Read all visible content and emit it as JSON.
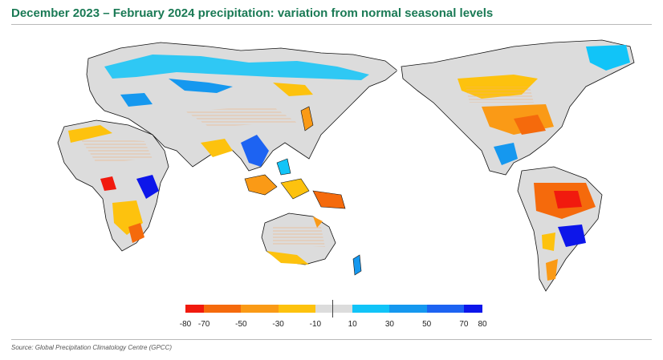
{
  "title": "December 2023 – February 2024 precipitation: variation from normal seasonal levels",
  "source": "Source: Global Precipitation Climatology Centre (GPCC)",
  "legend": {
    "swatches": [
      {
        "from": -80,
        "to": -70,
        "color": "#f11a0e"
      },
      {
        "from": -70,
        "to": -50,
        "color": "#f56a0c"
      },
      {
        "from": -50,
        "to": -30,
        "color": "#fa9a16"
      },
      {
        "from": -30,
        "to": -10,
        "color": "#fdc20e"
      },
      {
        "from": -10,
        "to": 10,
        "color": "#dcdcdc"
      },
      {
        "from": 10,
        "to": 30,
        "color": "#11c4f8"
      },
      {
        "from": 30,
        "to": 50,
        "color": "#1598ef"
      },
      {
        "from": 50,
        "to": 70,
        "color": "#1d63f2"
      },
      {
        "from": 70,
        "to": 80,
        "color": "#0d16ea"
      }
    ],
    "ticks": [
      "-80",
      "-70",
      "-50",
      "-30",
      "-10",
      "10",
      "30",
      "50",
      "70",
      "80"
    ]
  },
  "colors": {
    "land_normal": "#dcdcdc",
    "ocean": "#ffffff",
    "borders": "#111111",
    "title": "#1a7a55"
  }
}
